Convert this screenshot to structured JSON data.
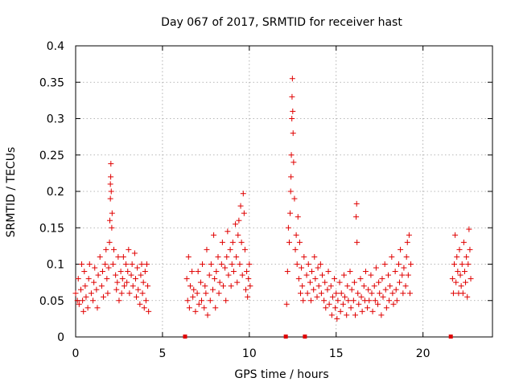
{
  "chart_data": {
    "type": "scatter",
    "title": "Day 067 of 2017, SRMTID for receiver hast",
    "xlabel": "GPS time / hours",
    "ylabel": "SRMTID / TECUs",
    "xlim": [
      0,
      24
    ],
    "ylim": [
      0,
      0.4
    ],
    "xticks": [
      0,
      5,
      10,
      15,
      20
    ],
    "xtick_labels": [
      "0",
      "5",
      "10",
      "15",
      "20"
    ],
    "yticks": [
      0,
      0.05,
      0.1,
      0.15,
      0.2,
      0.25,
      0.3,
      0.35,
      0.4
    ],
    "ytick_labels": [
      "0",
      "0.05",
      "0.1",
      "0.15",
      "0.2",
      "0.25",
      "0.3",
      "0.35",
      "0.4"
    ],
    "grid": true,
    "marker": "+",
    "color": "#e00000",
    "gap_markers_x": [
      6.3,
      12.1,
      13.2,
      21.6
    ],
    "series": [
      {
        "name": "SRMTID",
        "points": [
          [
            0.0,
            0.06
          ],
          [
            0.1,
            0.05
          ],
          [
            0.15,
            0.08
          ],
          [
            0.2,
            0.045
          ],
          [
            0.3,
            0.065
          ],
          [
            0.35,
            0.1
          ],
          [
            0.4,
            0.05
          ],
          [
            0.45,
            0.035
          ],
          [
            0.5,
            0.09
          ],
          [
            0.55,
            0.07
          ],
          [
            0.6,
            0.055
          ],
          [
            0.7,
            0.04
          ],
          [
            0.75,
            0.08
          ],
          [
            0.8,
            0.1
          ],
          [
            0.9,
            0.06
          ],
          [
            1.0,
            0.05
          ],
          [
            1.05,
            0.075
          ],
          [
            1.1,
            0.095
          ],
          [
            1.2,
            0.065
          ],
          [
            1.25,
            0.04
          ],
          [
            1.3,
            0.085
          ],
          [
            1.4,
            0.11
          ],
          [
            1.5,
            0.07
          ],
          [
            1.55,
            0.09
          ],
          [
            1.6,
            0.055
          ],
          [
            1.7,
            0.1
          ],
          [
            1.75,
            0.12
          ],
          [
            1.8,
            0.08
          ],
          [
            1.85,
            0.06
          ],
          [
            1.9,
            0.095
          ],
          [
            1.95,
            0.13
          ],
          [
            1.97,
            0.16
          ],
          [
            2.0,
            0.19
          ],
          [
            2.0,
            0.21
          ],
          [
            2.02,
            0.22
          ],
          [
            2.03,
            0.238
          ],
          [
            2.05,
            0.2
          ],
          [
            2.08,
            0.15
          ],
          [
            2.1,
            0.17
          ],
          [
            2.15,
            0.1
          ],
          [
            2.2,
            0.12
          ],
          [
            2.3,
            0.085
          ],
          [
            2.35,
            0.065
          ],
          [
            2.4,
            0.075
          ],
          [
            2.45,
            0.11
          ],
          [
            2.5,
            0.05
          ],
          [
            2.6,
            0.09
          ],
          [
            2.65,
            0.06
          ],
          [
            2.7,
            0.08
          ],
          [
            2.75,
            0.11
          ],
          [
            2.8,
            0.07
          ],
          [
            2.9,
            0.1
          ],
          [
            2.95,
            0.075
          ],
          [
            3.0,
            0.09
          ],
          [
            3.05,
            0.12
          ],
          [
            3.1,
            0.06
          ],
          [
            3.2,
            0.085
          ],
          [
            3.25,
            0.1
          ],
          [
            3.3,
            0.07
          ],
          [
            3.4,
            0.115
          ],
          [
            3.45,
            0.08
          ],
          [
            3.5,
            0.055
          ],
          [
            3.55,
            0.095
          ],
          [
            3.6,
            0.065
          ],
          [
            3.7,
            0.045
          ],
          [
            3.75,
            0.085
          ],
          [
            3.8,
            0.1
          ],
          [
            3.85,
            0.06
          ],
          [
            3.9,
            0.075
          ],
          [
            3.95,
            0.04
          ],
          [
            4.0,
            0.09
          ],
          [
            4.05,
            0.05
          ],
          [
            4.1,
            0.1
          ],
          [
            4.15,
            0.07
          ],
          [
            4.2,
            0.035
          ],
          [
            6.4,
            0.08
          ],
          [
            6.45,
            0.05
          ],
          [
            6.5,
            0.11
          ],
          [
            6.55,
            0.04
          ],
          [
            6.6,
            0.07
          ],
          [
            6.7,
            0.09
          ],
          [
            6.75,
            0.055
          ],
          [
            6.8,
            0.065
          ],
          [
            6.9,
            0.035
          ],
          [
            7.0,
            0.06
          ],
          [
            7.05,
            0.09
          ],
          [
            7.1,
            0.045
          ],
          [
            7.2,
            0.075
          ],
          [
            7.25,
            0.05
          ],
          [
            7.3,
            0.1
          ],
          [
            7.4,
            0.04
          ],
          [
            7.45,
            0.07
          ],
          [
            7.5,
            0.06
          ],
          [
            7.55,
            0.12
          ],
          [
            7.6,
            0.03
          ],
          [
            7.7,
            0.085
          ],
          [
            7.75,
            0.05
          ],
          [
            7.8,
            0.1
          ],
          [
            7.9,
            0.065
          ],
          [
            7.95,
            0.14
          ],
          [
            8.0,
            0.08
          ],
          [
            8.05,
            0.04
          ],
          [
            8.1,
            0.09
          ],
          [
            8.2,
            0.11
          ],
          [
            8.25,
            0.06
          ],
          [
            8.3,
            0.075
          ],
          [
            8.4,
            0.1
          ],
          [
            8.45,
            0.13
          ],
          [
            8.5,
            0.07
          ],
          [
            8.6,
            0.095
          ],
          [
            8.65,
            0.05
          ],
          [
            8.7,
            0.11
          ],
          [
            8.75,
            0.145
          ],
          [
            8.8,
            0.085
          ],
          [
            8.9,
            0.12
          ],
          [
            8.95,
            0.07
          ],
          [
            9.0,
            0.1
          ],
          [
            9.05,
            0.13
          ],
          [
            9.1,
            0.09
          ],
          [
            9.2,
            0.155
          ],
          [
            9.25,
            0.11
          ],
          [
            9.3,
            0.075
          ],
          [
            9.35,
            0.14
          ],
          [
            9.4,
            0.16
          ],
          [
            9.45,
            0.1
          ],
          [
            9.5,
            0.18
          ],
          [
            9.55,
            0.13
          ],
          [
            9.6,
            0.085
          ],
          [
            9.65,
            0.197
          ],
          [
            9.7,
            0.17
          ],
          [
            9.75,
            0.12
          ],
          [
            9.8,
            0.065
          ],
          [
            9.85,
            0.09
          ],
          [
            9.9,
            0.055
          ],
          [
            9.95,
            0.08
          ],
          [
            10.0,
            0.1
          ],
          [
            10.05,
            0.07
          ],
          [
            12.15,
            0.045
          ],
          [
            12.2,
            0.09
          ],
          [
            12.25,
            0.15
          ],
          [
            12.3,
            0.13
          ],
          [
            12.35,
            0.17
          ],
          [
            12.38,
            0.2
          ],
          [
            12.4,
            0.22
          ],
          [
            12.42,
            0.25
          ],
          [
            12.45,
            0.3
          ],
          [
            12.46,
            0.33
          ],
          [
            12.48,
            0.355
          ],
          [
            12.5,
            0.31
          ],
          [
            12.52,
            0.28
          ],
          [
            12.55,
            0.24
          ],
          [
            12.6,
            0.19
          ],
          [
            12.65,
            0.12
          ],
          [
            12.7,
            0.14
          ],
          [
            12.75,
            0.1
          ],
          [
            12.8,
            0.165
          ],
          [
            12.85,
            0.08
          ],
          [
            12.9,
            0.13
          ],
          [
            12.95,
            0.06
          ],
          [
            13.0,
            0.095
          ],
          [
            13.05,
            0.07
          ],
          [
            13.1,
            0.05
          ],
          [
            13.15,
            0.11
          ],
          [
            13.3,
            0.085
          ],
          [
            13.35,
            0.06
          ],
          [
            13.4,
            0.1
          ],
          [
            13.5,
            0.075
          ],
          [
            13.55,
            0.05
          ],
          [
            13.6,
            0.09
          ],
          [
            13.7,
            0.065
          ],
          [
            13.75,
            0.11
          ],
          [
            13.8,
            0.08
          ],
          [
            13.9,
            0.055
          ],
          [
            13.95,
            0.095
          ],
          [
            14.0,
            0.07
          ],
          [
            14.1,
            0.1
          ],
          [
            14.15,
            0.06
          ],
          [
            14.2,
            0.085
          ],
          [
            14.3,
            0.05
          ],
          [
            14.35,
            0.075
          ],
          [
            14.4,
            0.04
          ],
          [
            14.5,
            0.065
          ],
          [
            14.55,
            0.09
          ],
          [
            14.6,
            0.045
          ],
          [
            14.7,
            0.07
          ],
          [
            14.75,
            0.03
          ],
          [
            14.8,
            0.055
          ],
          [
            14.9,
            0.08
          ],
          [
            14.95,
            0.04
          ],
          [
            15.0,
            0.06
          ],
          [
            15.05,
            0.025
          ],
          [
            15.1,
            0.05
          ],
          [
            15.2,
            0.075
          ],
          [
            15.25,
            0.035
          ],
          [
            15.3,
            0.06
          ],
          [
            15.4,
            0.045
          ],
          [
            15.45,
            0.085
          ],
          [
            15.5,
            0.055
          ],
          [
            15.6,
            0.03
          ],
          [
            15.65,
            0.07
          ],
          [
            15.7,
            0.05
          ],
          [
            15.8,
            0.09
          ],
          [
            15.85,
            0.04
          ],
          [
            15.9,
            0.065
          ],
          [
            16.0,
            0.05
          ],
          [
            16.05,
            0.075
          ],
          [
            16.1,
            0.03
          ],
          [
            16.15,
            0.165
          ],
          [
            16.18,
            0.183
          ],
          [
            16.2,
            0.13
          ],
          [
            16.25,
            0.06
          ],
          [
            16.3,
            0.045
          ],
          [
            16.4,
            0.08
          ],
          [
            16.45,
            0.055
          ],
          [
            16.5,
            0.035
          ],
          [
            16.6,
            0.07
          ],
          [
            16.65,
            0.05
          ],
          [
            16.7,
            0.09
          ],
          [
            16.8,
            0.04
          ],
          [
            16.85,
            0.065
          ],
          [
            16.9,
            0.05
          ],
          [
            17.0,
            0.085
          ],
          [
            17.05,
            0.06
          ],
          [
            17.1,
            0.035
          ],
          [
            17.2,
            0.07
          ],
          [
            17.25,
            0.05
          ],
          [
            17.3,
            0.095
          ],
          [
            17.4,
            0.045
          ],
          [
            17.45,
            0.075
          ],
          [
            17.5,
            0.06
          ],
          [
            17.6,
            0.03
          ],
          [
            17.65,
            0.08
          ],
          [
            17.7,
            0.055
          ],
          [
            17.8,
            0.1
          ],
          [
            17.85,
            0.065
          ],
          [
            17.9,
            0.04
          ],
          [
            18.0,
            0.085
          ],
          [
            18.05,
            0.05
          ],
          [
            18.1,
            0.07
          ],
          [
            18.2,
            0.11
          ],
          [
            18.25,
            0.06
          ],
          [
            18.3,
            0.045
          ],
          [
            18.4,
            0.09
          ],
          [
            18.45,
            0.065
          ],
          [
            18.5,
            0.05
          ],
          [
            18.6,
            0.1
          ],
          [
            18.65,
            0.075
          ],
          [
            18.7,
            0.12
          ],
          [
            18.8,
            0.085
          ],
          [
            18.85,
            0.06
          ],
          [
            18.9,
            0.095
          ],
          [
            19.0,
            0.07
          ],
          [
            19.05,
            0.11
          ],
          [
            19.1,
            0.13
          ],
          [
            19.15,
            0.085
          ],
          [
            19.2,
            0.14
          ],
          [
            19.25,
            0.06
          ],
          [
            19.3,
            0.1
          ],
          [
            21.7,
            0.08
          ],
          [
            21.75,
            0.06
          ],
          [
            21.8,
            0.1
          ],
          [
            21.85,
            0.14
          ],
          [
            21.9,
            0.075
          ],
          [
            21.95,
            0.11
          ],
          [
            22.0,
            0.09
          ],
          [
            22.05,
            0.06
          ],
          [
            22.1,
            0.12
          ],
          [
            22.15,
            0.085
          ],
          [
            22.2,
            0.07
          ],
          [
            22.25,
            0.1
          ],
          [
            22.3,
            0.06
          ],
          [
            22.35,
            0.13
          ],
          [
            22.4,
            0.09
          ],
          [
            22.45,
            0.075
          ],
          [
            22.5,
            0.11
          ],
          [
            22.55,
            0.055
          ],
          [
            22.6,
            0.1
          ],
          [
            22.65,
            0.148
          ],
          [
            22.7,
            0.12
          ],
          [
            22.75,
            0.08
          ]
        ]
      }
    ]
  }
}
